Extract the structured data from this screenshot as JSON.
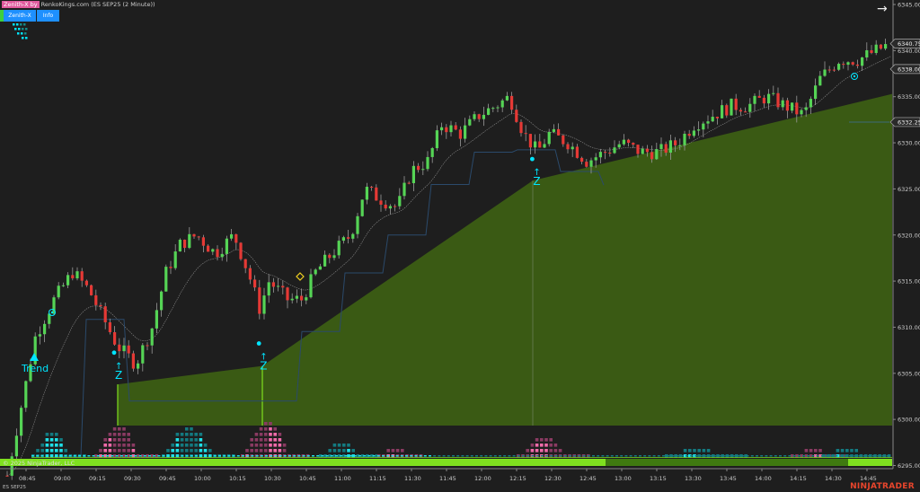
{
  "header": {
    "indicator_badge": "Zenith-X by",
    "title_rest": " RenkoKings.com (ES SEP25 (2 Minute))",
    "buttons": [
      {
        "label": "Zenith-X"
      },
      {
        "label": "Info"
      }
    ]
  },
  "price_axis": {
    "ticks": [
      "6345.00",
      "6340.00",
      "6335.00",
      "6330.00",
      "6325.00",
      "6320.00",
      "6315.00",
      "6310.00",
      "6305.00",
      "6300.00",
      "6295.00"
    ],
    "markers": [
      {
        "label": "6340.75",
        "price": 6340.75
      },
      {
        "label": "6338.00",
        "price": 6338.0
      },
      {
        "label": "6332.25",
        "price": 6332.25
      }
    ]
  },
  "time_axis": {
    "ticks": [
      "08:45",
      "09:00",
      "09:15",
      "09:30",
      "09:45",
      "10:00",
      "10:15",
      "10:30",
      "10:45",
      "11:00",
      "11:15",
      "11:30",
      "11:45",
      "12:00",
      "12:15",
      "12:30",
      "12:45",
      "13:00",
      "13:15",
      "13:30",
      "13:45",
      "14:00",
      "14:15",
      "14:30",
      "14:45"
    ]
  },
  "price_path": [
    [
      "08:45",
      6304
    ],
    [
      "08:49",
      6309
    ],
    [
      "08:57",
      6313
    ],
    [
      "09:05",
      6316
    ],
    [
      "09:12",
      6314
    ],
    [
      "09:18",
      6311
    ],
    [
      "09:24",
      6308
    ],
    [
      "09:32",
      6306
    ],
    [
      "09:39",
      6310
    ],
    [
      "09:45",
      6316
    ],
    [
      "09:51",
      6319
    ],
    [
      "09:58",
      6320
    ],
    [
      "10:06",
      6318
    ],
    [
      "10:14",
      6320
    ],
    [
      "10:20",
      6316
    ],
    [
      "10:25",
      6312
    ],
    [
      "10:29",
      6315
    ],
    [
      "10:37",
      6313
    ],
    [
      "10:43",
      6313
    ],
    [
      "10:49",
      6316
    ],
    [
      "10:56",
      6318
    ],
    [
      "11:04",
      6320
    ],
    [
      "11:10",
      6325
    ],
    [
      "11:16",
      6324
    ],
    [
      "11:24",
      6323
    ],
    [
      "11:30",
      6327
    ],
    [
      "11:37",
      6328
    ],
    [
      "11:43",
      6332
    ],
    [
      "11:51",
      6331
    ],
    [
      "11:59",
      6333
    ],
    [
      "12:06",
      6334
    ],
    [
      "12:12",
      6335
    ],
    [
      "12:18",
      6331
    ],
    [
      "12:24",
      6329
    ],
    [
      "12:29",
      6331
    ],
    [
      "12:37",
      6330
    ],
    [
      "12:45",
      6328
    ],
    [
      "12:53",
      6329
    ],
    [
      "13:00",
      6330
    ],
    [
      "13:08",
      6329
    ],
    [
      "13:16",
      6329
    ],
    [
      "13:24",
      6330
    ],
    [
      "13:31",
      6332
    ],
    [
      "13:39",
      6333
    ],
    [
      "13:47",
      6334
    ],
    [
      "13:54",
      6334
    ],
    [
      "14:02",
      6335
    ],
    [
      "14:10",
      6334
    ],
    [
      "14:18",
      6333
    ],
    [
      "14:25",
      6337
    ],
    [
      "14:33",
      6339
    ],
    [
      "14:41",
      6339
    ],
    [
      "14:49",
      6340
    ],
    [
      "14:55",
      6340.75
    ]
  ],
  "annotations": {
    "trend_label": "Trend",
    "signals": [
      {
        "label": "Z",
        "time": "09:25",
        "price": 6305
      },
      {
        "label": "Z",
        "time": "10:27",
        "price": 6306
      },
      {
        "label": "Z",
        "time": "12:24",
        "price": 6326
      }
    ]
  },
  "colors": {
    "up": "#55d455",
    "down": "#e53935",
    "fill": "#3a5a14",
    "signal": "#00e5ff",
    "stop_line": "#2b4a6b",
    "bar": "#7fe01f"
  },
  "footer": {
    "copyright": "© 2025 NinjaTrader, LLC",
    "instrument": "ES SEP25",
    "logo": "NINJATRADER"
  }
}
